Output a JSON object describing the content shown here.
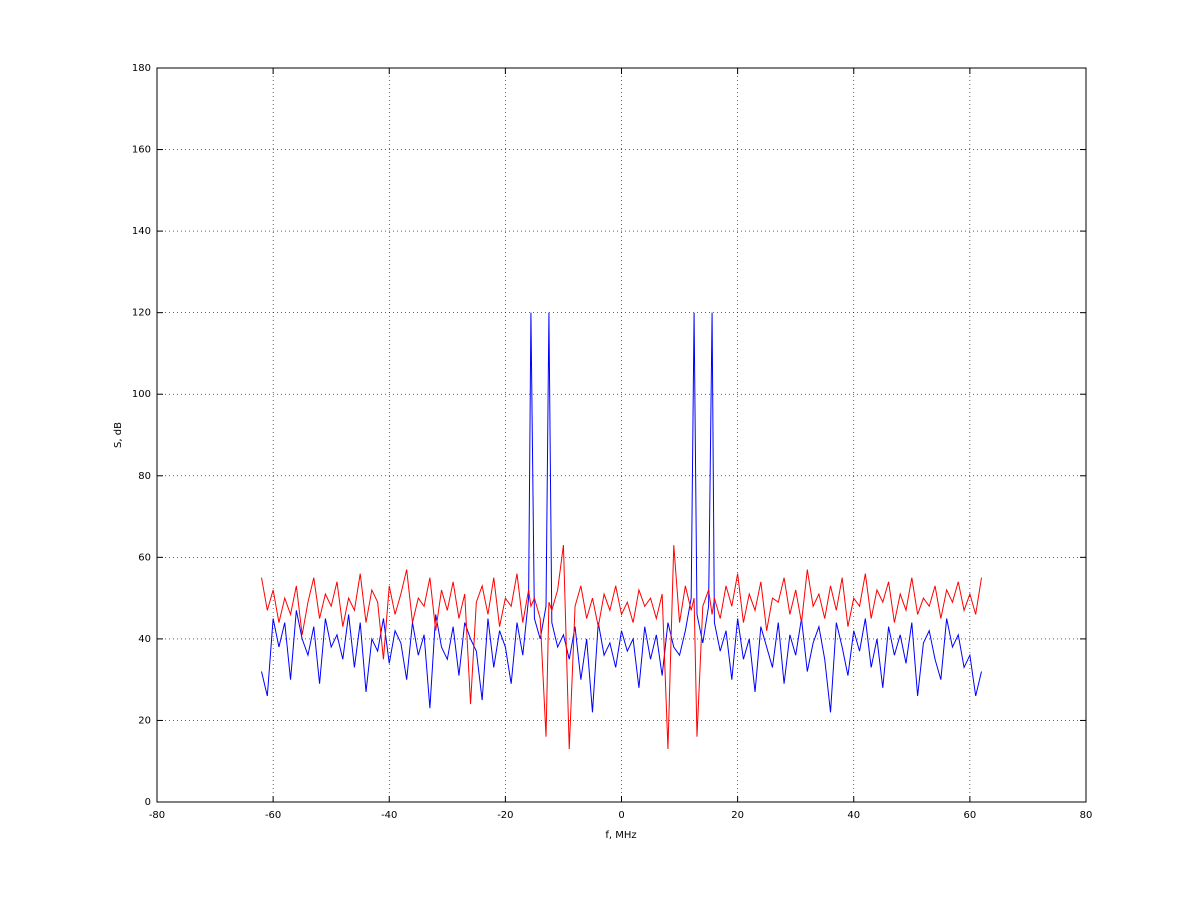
{
  "chart_data": {
    "type": "line",
    "x_label": "f, MHz",
    "y_label": "S, dB",
    "x": [
      -62,
      -61,
      -60,
      -59,
      -58,
      -57,
      -56,
      -55,
      -54,
      -53,
      -52,
      -51,
      -50,
      -49,
      -48,
      -47,
      -46,
      -45,
      -44,
      -43,
      -42,
      -41,
      -40,
      -39,
      -38,
      -37,
      -36,
      -35,
      -34,
      -33,
      -32,
      -31,
      -30,
      -29,
      -28,
      -27,
      -26,
      -25,
      -24,
      -23,
      -22,
      -21,
      -20,
      -19,
      -18,
      -17,
      -16,
      -15.6,
      -15,
      -14,
      -13,
      -12.5,
      -12,
      -11,
      -10,
      -9,
      -8,
      -7,
      -6,
      -5,
      -4,
      -3,
      -2,
      -1,
      0,
      1,
      2,
      3,
      4,
      5,
      6,
      7,
      8,
      9,
      10,
      11,
      12,
      12.5,
      13,
      14,
      15,
      15.6,
      16,
      17,
      18,
      19,
      20,
      21,
      22,
      23,
      24,
      25,
      26,
      27,
      28,
      29,
      30,
      31,
      32,
      33,
      34,
      35,
      36,
      37,
      38,
      39,
      40,
      41,
      42,
      43,
      44,
      45,
      46,
      47,
      48,
      49,
      50,
      51,
      52,
      53,
      54,
      55,
      56,
      57,
      58,
      59,
      60,
      61,
      62
    ],
    "series": [
      {
        "color": "#0000ff",
        "values": [
          32,
          26,
          45,
          38,
          44,
          30,
          47,
          40,
          36,
          43,
          29,
          45,
          38,
          41,
          35,
          46,
          33,
          44,
          27,
          40,
          37,
          45,
          34,
          42,
          39,
          30,
          44,
          36,
          41,
          23,
          46,
          38,
          35,
          43,
          31,
          44,
          40,
          37,
          25,
          45,
          33,
          42,
          38,
          29,
          44,
          36,
          50,
          120,
          45,
          40,
          48,
          120,
          44,
          38,
          41,
          35,
          43,
          30,
          40,
          22,
          44,
          36,
          39,
          33,
          42,
          37,
          40,
          28,
          43,
          35,
          41,
          31,
          44,
          38,
          36,
          42,
          50,
          120,
          46,
          39,
          48,
          120,
          44,
          37,
          42,
          30,
          45,
          35,
          40,
          27,
          43,
          38,
          33,
          44,
          29,
          41,
          36,
          45,
          32,
          39,
          43,
          35,
          22,
          44,
          38,
          31,
          42,
          37,
          45,
          33,
          40,
          28,
          43,
          36,
          41,
          34,
          44,
          26,
          39,
          42,
          35,
          30,
          45,
          38,
          41,
          33,
          36,
          26,
          32
        ]
      },
      {
        "color": "#ff0000",
        "values": [
          55,
          47,
          52,
          44,
          50,
          46,
          53,
          41,
          49,
          55,
          45,
          51,
          48,
          54,
          43,
          50,
          47,
          56,
          44,
          52,
          49,
          35,
          53,
          46,
          51,
          57,
          44,
          50,
          48,
          55,
          42,
          52,
          47,
          54,
          45,
          51,
          24,
          49,
          53,
          46,
          55,
          43,
          50,
          48,
          56,
          44,
          52,
          48,
          50,
          45,
          16,
          49,
          47,
          52,
          63,
          13,
          48,
          53,
          45,
          50,
          43,
          51,
          47,
          53,
          46,
          49,
          44,
          52,
          48,
          50,
          45,
          51,
          13,
          63,
          44,
          53,
          47,
          50,
          16,
          48,
          52,
          46,
          50,
          45,
          53,
          48,
          56,
          44,
          51,
          47,
          54,
          42,
          50,
          49,
          55,
          46,
          52,
          44,
          57,
          48,
          51,
          45,
          53,
          47,
          55,
          43,
          50,
          48,
          56,
          45,
          52,
          49,
          54,
          44,
          51,
          47,
          55,
          46,
          50,
          48,
          53,
          45,
          52,
          49,
          54,
          47,
          51,
          46,
          55
        ]
      }
    ],
    "xlim": [
      -80,
      80
    ],
    "xticks": [
      -80,
      -60,
      -40,
      -20,
      0,
      20,
      40,
      60,
      80
    ],
    "ylim": [
      0,
      180
    ],
    "yticks": [
      0,
      20,
      40,
      60,
      80,
      100,
      120,
      140,
      160,
      180
    ],
    "grid": true
  }
}
